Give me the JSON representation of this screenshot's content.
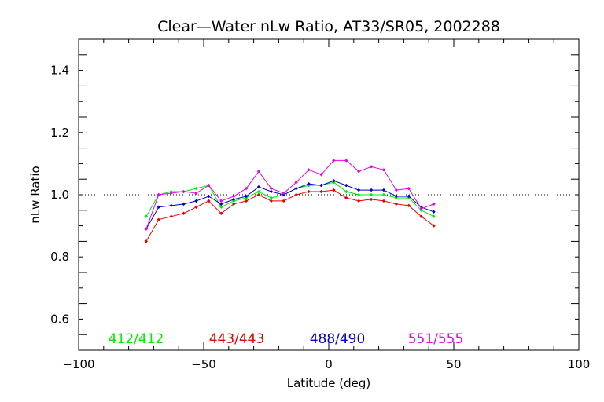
{
  "chart_data": {
    "type": "line",
    "title": "Clear—Water nLw Ratio, AT33/SR05, 2002288",
    "xlabel": "Latitude (deg)",
    "ylabel": "nLw Ratio",
    "xlim": [
      -100,
      100
    ],
    "ylim": [
      0.5,
      1.5
    ],
    "x_ticks": [
      -100,
      -50,
      0,
      50,
      100
    ],
    "y_ticks": [
      0.6,
      0.8,
      1.0,
      1.2,
      1.4
    ],
    "x_tick_labels": [
      "−100",
      "−50",
      "0",
      "50",
      "100"
    ],
    "y_tick_labels": [
      "0.6",
      "0.8",
      "1.0",
      "1.2",
      "1.4"
    ],
    "reference_line": 1.0,
    "legend_placement": "bottom-inside",
    "x": [
      -73,
      -68,
      -63,
      -58,
      -53,
      -48,
      -43,
      -38,
      -33,
      -28,
      -23,
      -18,
      -13,
      -8,
      -3,
      2,
      7,
      12,
      17,
      22,
      27,
      32,
      37,
      42
    ],
    "series": [
      {
        "name": "412/412",
        "color": "#00ee00",
        "values": [
          0.93,
          1.0,
          1.01,
          1.01,
          1.02,
          1.03,
          0.96,
          0.98,
          0.99,
          1.01,
          0.99,
          1.0,
          1.02,
          1.03,
          1.03,
          1.04,
          1.01,
          1.0,
          1.0,
          1.0,
          0.99,
          0.99,
          0.95,
          0.93
        ]
      },
      {
        "name": "443/443",
        "color": "#ee0000",
        "values": [
          0.85,
          0.92,
          0.93,
          0.94,
          0.96,
          0.98,
          0.94,
          0.97,
          0.98,
          1.0,
          0.98,
          0.98,
          1.0,
          1.01,
          1.01,
          1.015,
          0.99,
          0.98,
          0.985,
          0.98,
          0.97,
          0.965,
          0.93,
          0.9
        ]
      },
      {
        "name": "488/490",
        "color": "#0000cc",
        "values": [
          0.89,
          0.96,
          0.965,
          0.97,
          0.98,
          0.995,
          0.97,
          0.985,
          0.995,
          1.025,
          1.01,
          1.0,
          1.02,
          1.035,
          1.03,
          1.045,
          1.03,
          1.015,
          1.015,
          1.015,
          0.995,
          0.995,
          0.96,
          0.945
        ]
      },
      {
        "name": "551/555",
        "color": "#ee00ee",
        "values": [
          0.89,
          1.0,
          1.005,
          1.01,
          1.005,
          1.03,
          0.98,
          0.995,
          1.02,
          1.075,
          1.02,
          1.005,
          1.04,
          1.08,
          1.065,
          1.11,
          1.11,
          1.075,
          1.09,
          1.08,
          1.015,
          1.02,
          0.955,
          0.97
        ]
      }
    ]
  }
}
